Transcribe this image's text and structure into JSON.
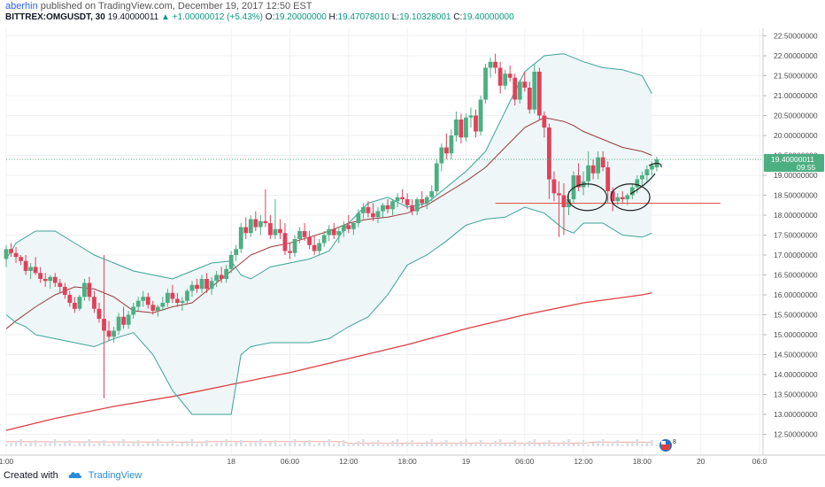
{
  "header": {
    "author": "aberhin",
    "published_text": "published on TradingView.com, December 19, 2017 12:50 EST"
  },
  "symbol_bar": {
    "symbol": "BITTREX:OMGUSDT, 30",
    "last": "19.40000011",
    "change": "+1.00000012 (+5.43%)",
    "open_label": "O:",
    "open": "19.20000000",
    "high_label": "H:",
    "high": "19.47078010",
    "low_label": "L:",
    "low": "19.10328001",
    "close_label": "C:",
    "close": "19.40000000"
  },
  "footer": {
    "created_with": "Created with",
    "brand": "TradingView"
  },
  "colors": {
    "up": "#4caf82",
    "down": "#e0415a",
    "band": "#3aa39a",
    "band_fill": "#eef6f7",
    "basis": "#9a3a3a",
    "long_ma": "#e04040",
    "support_line": "#e25050",
    "volume": "#f2a9a3",
    "last_price_tag": "#4caf82",
    "accent": "#2a8cd8"
  },
  "chart_data": {
    "type": "candlestick",
    "symbol": "BITTREX:OMGUSDT",
    "interval": "30",
    "ylim": [
      12.25,
      22.65
    ],
    "y_ticks": [
      "22.50000000",
      "22.00000000",
      "21.50000000",
      "21.00000000",
      "20.50000000",
      "20.00000000",
      "19.50000000",
      "19.00000000",
      "18.50000000",
      "18.00000000",
      "17.50000000",
      "17.00000000",
      "16.50000000",
      "16.00000000",
      "15.50000000",
      "15.00000000",
      "14.50000000",
      "14.00000000",
      "13.50000000",
      "13.00000000",
      "12.50000000"
    ],
    "x_tick_labels": [
      "1:00",
      "18",
      "06:00",
      "12:00",
      "18:00",
      "19",
      "06:00",
      "12:00",
      "18:00",
      "20",
      "06:0"
    ],
    "x_tick_hours": [
      1,
      24,
      30,
      36,
      42,
      48,
      54,
      60,
      66,
      72,
      78
    ],
    "x_range_hours": [
      1,
      80.7
    ],
    "last_price_label": "19.40000011",
    "countdown_label": "09:55",
    "candles_start_hour": 1,
    "candle_interval_hours": 0.5,
    "candles": [
      [
        16.9,
        17.25,
        16.7,
        17.15
      ],
      [
        17.15,
        17.3,
        16.95,
        17.05
      ],
      [
        17.05,
        17.2,
        16.8,
        16.95
      ],
      [
        16.95,
        17.0,
        16.75,
        16.85
      ],
      [
        16.85,
        17.0,
        16.5,
        16.6
      ],
      [
        16.6,
        16.8,
        16.4,
        16.7
      ],
      [
        16.7,
        16.95,
        16.5,
        16.55
      ],
      [
        16.55,
        16.7,
        16.3,
        16.4
      ],
      [
        16.4,
        16.55,
        16.2,
        16.35
      ],
      [
        16.35,
        16.5,
        16.15,
        16.45
      ],
      [
        16.45,
        16.55,
        16.2,
        16.3
      ],
      [
        16.3,
        16.4,
        16.05,
        16.2
      ],
      [
        16.2,
        16.3,
        15.9,
        16.0
      ],
      [
        16.0,
        16.1,
        15.7,
        15.8
      ],
      [
        15.8,
        15.95,
        15.55,
        15.65
      ],
      [
        15.65,
        16.0,
        15.6,
        15.95
      ],
      [
        15.95,
        16.4,
        15.85,
        16.3
      ],
      [
        16.3,
        16.45,
        15.85,
        15.95
      ],
      [
        15.95,
        16.1,
        15.55,
        15.65
      ],
      [
        15.65,
        15.8,
        15.3,
        15.4
      ],
      [
        15.4,
        17.0,
        13.4,
        15.1
      ],
      [
        15.1,
        15.35,
        14.85,
        14.95
      ],
      [
        14.95,
        15.2,
        14.8,
        15.1
      ],
      [
        15.1,
        15.55,
        15.0,
        15.45
      ],
      [
        15.45,
        15.7,
        15.15,
        15.25
      ],
      [
        15.25,
        15.6,
        15.15,
        15.5
      ],
      [
        15.5,
        15.8,
        15.4,
        15.7
      ],
      [
        15.7,
        15.95,
        15.6,
        15.85
      ],
      [
        15.85,
        16.1,
        15.7,
        15.95
      ],
      [
        15.95,
        16.05,
        15.65,
        15.75
      ],
      [
        15.75,
        15.85,
        15.5,
        15.6
      ],
      [
        15.6,
        15.75,
        15.45,
        15.7
      ],
      [
        15.7,
        15.95,
        15.6,
        15.8
      ],
      [
        15.8,
        16.15,
        15.7,
        16.05
      ],
      [
        16.05,
        16.25,
        15.8,
        15.9
      ],
      [
        15.9,
        16.05,
        15.7,
        15.8
      ],
      [
        15.8,
        15.95,
        15.6,
        15.85
      ],
      [
        15.85,
        16.15,
        15.75,
        16.1
      ],
      [
        16.1,
        16.35,
        15.95,
        16.25
      ],
      [
        16.25,
        16.4,
        16.05,
        16.15
      ],
      [
        16.15,
        16.5,
        16.05,
        16.4
      ],
      [
        16.4,
        16.55,
        16.05,
        16.15
      ],
      [
        16.15,
        16.45,
        16.0,
        16.35
      ],
      [
        16.35,
        16.6,
        16.2,
        16.5
      ],
      [
        16.5,
        16.7,
        16.3,
        16.4
      ],
      [
        16.4,
        16.75,
        16.3,
        16.65
      ],
      [
        16.65,
        17.1,
        16.55,
        17.0
      ],
      [
        17.0,
        17.25,
        16.85,
        17.15
      ],
      [
        17.15,
        17.8,
        17.05,
        17.7
      ],
      [
        17.7,
        17.95,
        17.4,
        17.55
      ],
      [
        17.55,
        18.0,
        17.45,
        17.9
      ],
      [
        17.9,
        18.1,
        17.6,
        17.7
      ],
      [
        17.7,
        18.0,
        17.5,
        17.85
      ],
      [
        17.85,
        18.65,
        17.7,
        17.8
      ],
      [
        17.8,
        18.0,
        17.4,
        17.5
      ],
      [
        17.5,
        18.4,
        17.4,
        17.65
      ],
      [
        17.65,
        17.9,
        17.4,
        17.55
      ],
      [
        17.55,
        17.8,
        17.0,
        17.1
      ],
      [
        17.1,
        17.3,
        16.9,
        17.05
      ],
      [
        17.05,
        17.5,
        16.95,
        17.4
      ],
      [
        17.4,
        17.7,
        17.3,
        17.6
      ],
      [
        17.6,
        17.8,
        17.35,
        17.45
      ],
      [
        17.45,
        17.6,
        17.15,
        17.25
      ],
      [
        17.25,
        17.5,
        17.0,
        17.1
      ],
      [
        17.1,
        17.4,
        17.0,
        17.3
      ],
      [
        17.3,
        17.6,
        17.2,
        17.5
      ],
      [
        17.5,
        17.75,
        17.35,
        17.65
      ],
      [
        17.65,
        17.8,
        17.4,
        17.5
      ],
      [
        17.5,
        17.7,
        17.3,
        17.6
      ],
      [
        17.6,
        17.85,
        17.45,
        17.75
      ],
      [
        17.75,
        18.0,
        17.55,
        17.65
      ],
      [
        17.65,
        17.85,
        17.5,
        17.8
      ],
      [
        17.8,
        18.15,
        17.7,
        18.05
      ],
      [
        18.05,
        18.3,
        17.9,
        18.2
      ],
      [
        18.2,
        18.35,
        17.95,
        18.05
      ],
      [
        18.05,
        18.3,
        17.85,
        17.95
      ],
      [
        17.95,
        18.2,
        17.8,
        18.1
      ],
      [
        18.1,
        18.3,
        17.95,
        18.25
      ],
      [
        18.25,
        18.4,
        18.05,
        18.15
      ],
      [
        18.15,
        18.4,
        18.0,
        18.35
      ],
      [
        18.35,
        18.55,
        18.2,
        18.45
      ],
      [
        18.45,
        18.65,
        18.3,
        18.4
      ],
      [
        18.4,
        18.55,
        18.15,
        18.25
      ],
      [
        18.25,
        18.4,
        18.0,
        18.1
      ],
      [
        18.1,
        18.45,
        18.0,
        18.4
      ],
      [
        18.4,
        18.6,
        18.2,
        18.3
      ],
      [
        18.3,
        18.5,
        18.15,
        18.45
      ],
      [
        18.45,
        18.75,
        18.35,
        18.6
      ],
      [
        18.6,
        19.4,
        18.5,
        19.3
      ],
      [
        19.3,
        19.8,
        19.1,
        19.7
      ],
      [
        19.7,
        20.05,
        19.4,
        19.55
      ],
      [
        19.55,
        20.15,
        19.4,
        20.0
      ],
      [
        20.0,
        20.6,
        19.85,
        20.4
      ],
      [
        20.4,
        20.55,
        19.8,
        19.95
      ],
      [
        19.95,
        20.55,
        19.85,
        20.45
      ],
      [
        20.45,
        20.7,
        20.2,
        20.5
      ],
      [
        20.5,
        20.65,
        19.95,
        20.1
      ],
      [
        20.1,
        21.0,
        20.0,
        20.9
      ],
      [
        20.9,
        21.8,
        20.8,
        21.7
      ],
      [
        21.7,
        21.95,
        21.45,
        21.85
      ],
      [
        21.85,
        22.05,
        21.55,
        21.7
      ],
      [
        21.7,
        21.85,
        21.05,
        21.25
      ],
      [
        21.25,
        21.65,
        21.15,
        21.55
      ],
      [
        21.55,
        21.75,
        21.35,
        21.45
      ],
      [
        21.45,
        21.55,
        20.75,
        20.9
      ],
      [
        20.9,
        21.4,
        20.8,
        21.35
      ],
      [
        21.35,
        21.6,
        21.1,
        21.2
      ],
      [
        21.2,
        21.35,
        20.55,
        20.65
      ],
      [
        20.65,
        21.8,
        20.55,
        21.6
      ],
      [
        21.6,
        21.7,
        20.4,
        20.5
      ],
      [
        20.5,
        20.6,
        19.95,
        20.2
      ],
      [
        20.2,
        20.3,
        18.4,
        18.9
      ],
      [
        18.9,
        19.1,
        18.35,
        18.55
      ],
      [
        18.55,
        18.85,
        17.45,
        18.5
      ],
      [
        18.5,
        18.8,
        17.5,
        18.2
      ],
      [
        18.2,
        18.6,
        18.0,
        18.4
      ],
      [
        18.4,
        19.1,
        18.3,
        19.0
      ],
      [
        19.0,
        19.3,
        18.6,
        18.7
      ],
      [
        18.7,
        19.1,
        18.5,
        18.85
      ],
      [
        18.85,
        19.6,
        18.7,
        19.25
      ],
      [
        19.25,
        19.4,
        18.9,
        19.05
      ],
      [
        19.05,
        19.6,
        18.9,
        19.45
      ],
      [
        19.45,
        19.6,
        19.1,
        19.2
      ],
      [
        19.2,
        19.35,
        18.3,
        18.6
      ],
      [
        18.6,
        18.7,
        18.1,
        18.35
      ],
      [
        18.35,
        18.55,
        18.25,
        18.45
      ],
      [
        18.45,
        18.6,
        18.3,
        18.4
      ],
      [
        18.4,
        18.55,
        18.25,
        18.5
      ],
      [
        18.5,
        18.8,
        18.4,
        18.7
      ],
      [
        18.7,
        19.0,
        18.55,
        18.9
      ],
      [
        18.9,
        19.1,
        18.7,
        19.0
      ],
      [
        19.0,
        19.25,
        18.85,
        19.15
      ],
      [
        19.15,
        19.35,
        19.0,
        19.25
      ],
      [
        19.2,
        19.47,
        19.1,
        19.4
      ]
    ],
    "series": [
      {
        "name": "upper_band",
        "x": [
          1,
          2,
          4,
          6,
          8,
          10,
          12,
          14,
          16,
          18,
          20,
          22,
          24,
          25,
          26,
          28,
          30,
          32,
          34,
          36,
          38,
          40,
          42,
          44,
          46,
          48,
          50,
          52,
          54,
          56,
          58,
          60,
          62,
          64,
          66,
          67
        ],
        "values": [
          16.9,
          17.3,
          17.6,
          17.6,
          17.3,
          17.0,
          16.8,
          16.6,
          16.5,
          16.4,
          16.6,
          16.8,
          16.85,
          16.5,
          16.4,
          16.7,
          16.8,
          16.9,
          17.1,
          17.8,
          18.3,
          18.45,
          18.2,
          18.3,
          18.7,
          19.1,
          19.6,
          20.6,
          21.6,
          22.0,
          22.05,
          21.85,
          21.7,
          21.65,
          21.5,
          21.05
        ]
      },
      {
        "name": "lower_band",
        "x": [
          1,
          2,
          3,
          4,
          6,
          8,
          10,
          12,
          14,
          16,
          18,
          20,
          22,
          24,
          25,
          26,
          28,
          30,
          32,
          34,
          36,
          38,
          40,
          42,
          44,
          46,
          48,
          50,
          52,
          54,
          56,
          58,
          59,
          60,
          62,
          64,
          66,
          67
        ],
        "values": [
          15.5,
          15.3,
          15.2,
          15.0,
          14.9,
          14.8,
          14.7,
          14.9,
          15.05,
          14.5,
          13.6,
          13.0,
          13.0,
          13.0,
          14.5,
          14.7,
          14.8,
          14.8,
          14.8,
          14.9,
          15.2,
          15.45,
          16.0,
          16.75,
          17.0,
          17.35,
          17.75,
          17.9,
          17.95,
          18.2,
          18.05,
          17.65,
          17.55,
          17.8,
          17.8,
          17.5,
          17.45,
          17.55
        ]
      },
      {
        "name": "basis",
        "x": [
          1,
          2,
          4,
          6,
          8,
          10,
          12,
          14,
          16,
          18,
          20,
          22,
          24,
          26,
          28,
          30,
          32,
          34,
          36,
          38,
          40,
          42,
          44,
          46,
          48,
          50,
          52,
          54,
          56,
          58,
          59,
          60,
          62,
          64,
          66,
          67
        ],
        "values": [
          15.15,
          15.35,
          15.7,
          16.0,
          16.2,
          16.15,
          15.95,
          15.6,
          15.55,
          15.7,
          15.8,
          16.2,
          16.6,
          17.0,
          17.2,
          17.3,
          17.45,
          17.6,
          17.8,
          17.9,
          17.95,
          18.05,
          18.25,
          18.55,
          18.85,
          19.2,
          19.7,
          20.2,
          20.45,
          20.35,
          20.25,
          20.1,
          19.9,
          19.7,
          19.6,
          19.5
        ]
      },
      {
        "name": "long_ma",
        "x": [
          1,
          6,
          12,
          18,
          24,
          30,
          36,
          42,
          48,
          54,
          60,
          66,
          67
        ],
        "values": [
          12.6,
          12.9,
          13.2,
          13.45,
          13.75,
          14.05,
          14.4,
          14.75,
          15.15,
          15.5,
          15.8,
          16.0,
          16.05
        ]
      }
    ],
    "volume": [
      {
        "x": [
          1,
          20.5,
          21,
          22,
          35.5,
          36,
          45,
          55,
          60,
          61,
          67
        ],
        "values": [
          0.35,
          0.3,
          0.3,
          0.35,
          0.35,
          0.2,
          0.2,
          0.2,
          0.2,
          0.3,
          0.3
        ]
      }
    ],
    "annotations": {
      "support_line": {
        "price": 18.3,
        "x_start_hours": 51,
        "x_end_hours": 74
      },
      "circles": [
        {
          "x_hours": 60.4,
          "price": 18.45
        },
        {
          "x_hours": 64.8,
          "price": 18.45
        }
      ],
      "arrow_sketch": true
    },
    "grid": true
  }
}
